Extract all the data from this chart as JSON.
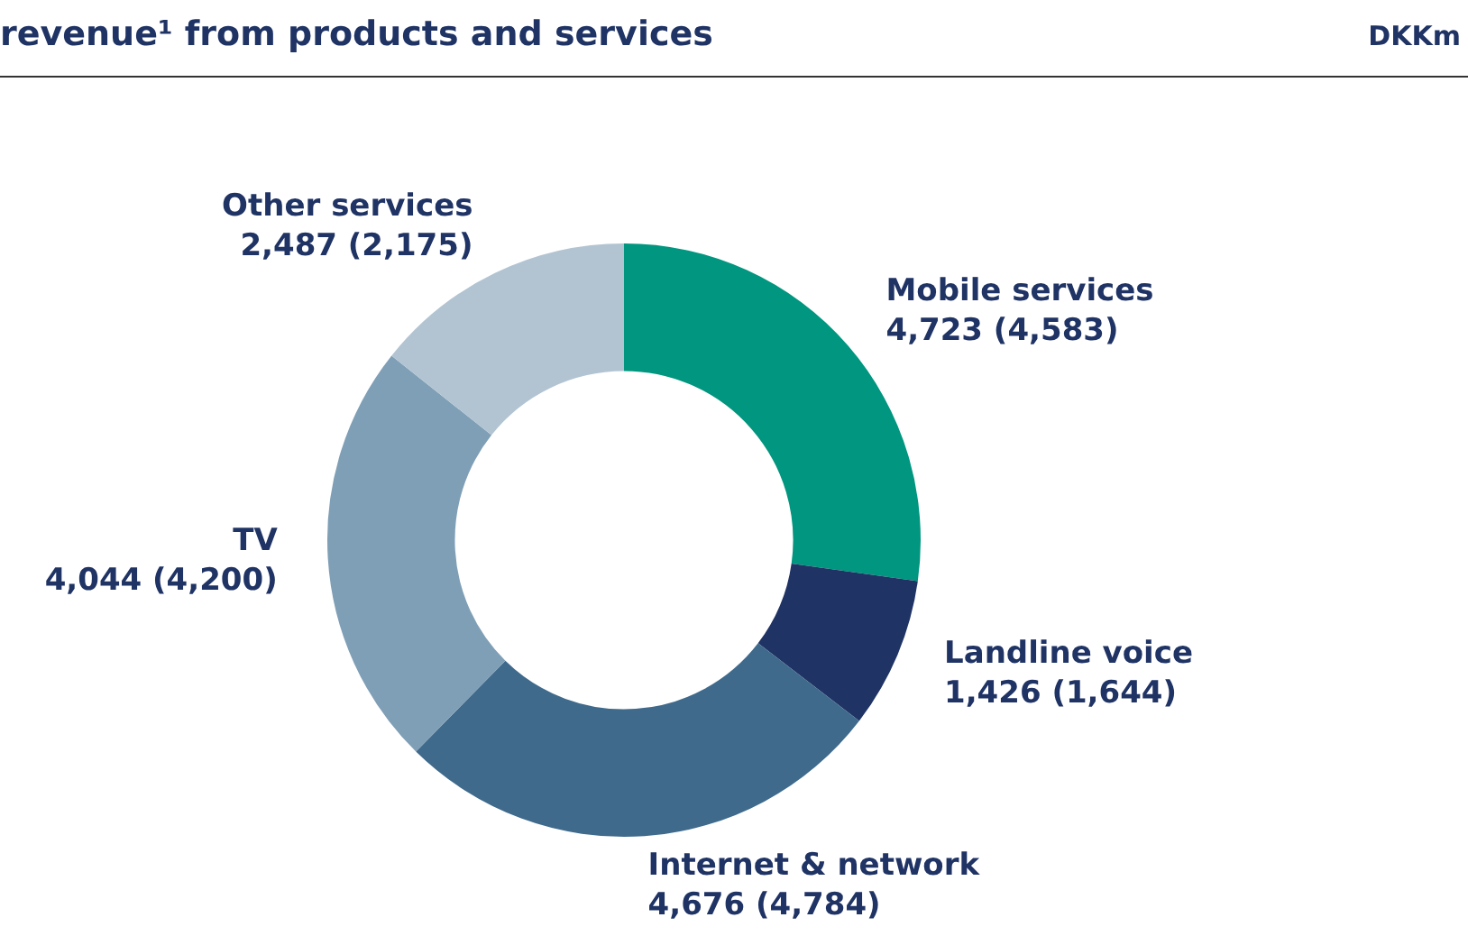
{
  "chart_data": {
    "type": "donut",
    "title": "revenue¹ from products and services",
    "subtitle": "DKKm",
    "categories": [
      "Mobile services",
      "Landline voice",
      "Internet & network",
      "TV",
      "Other services"
    ],
    "values": [
      4723,
      1426,
      4676,
      4044,
      2487
    ],
    "value_labels": [
      "4,723 (4,583)",
      "1,426 (1,644)",
      "4,676 (4,784)",
      "4,044 (4,200)",
      "2,487 (2,175)"
    ],
    "colors": [
      "#00967f",
      "#1f3364",
      "#3f6a8c",
      "#7f9fb6",
      "#b2c4d2"
    ],
    "legend": false
  }
}
